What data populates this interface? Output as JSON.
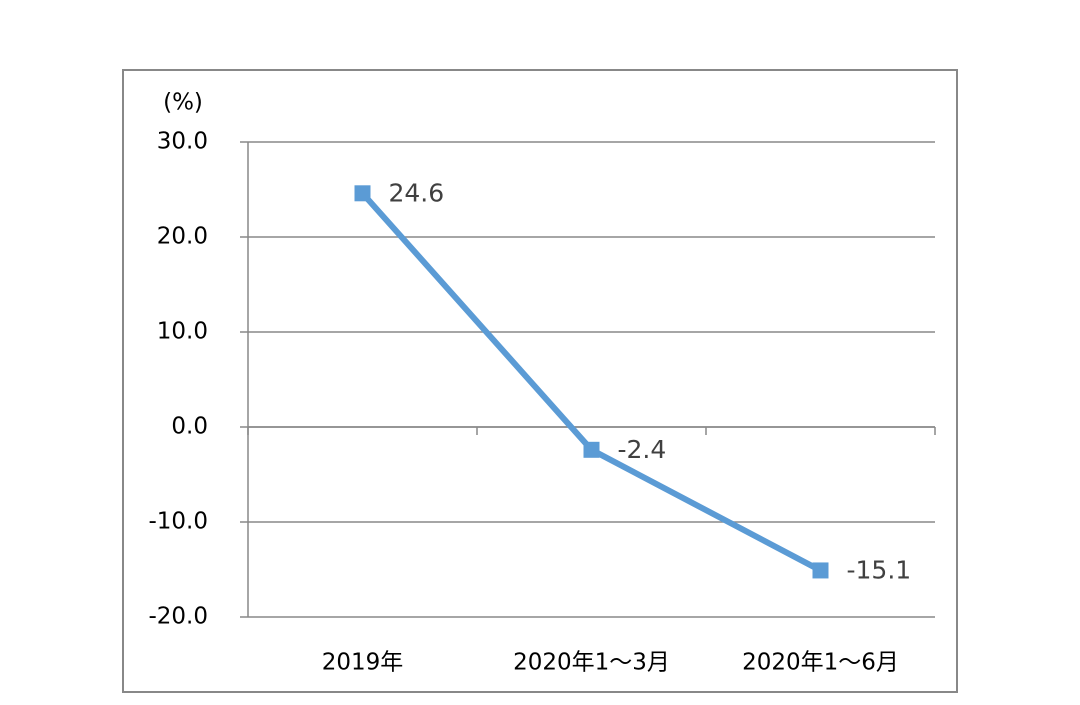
{
  "chart_data": {
    "type": "line",
    "ylabel": "(%)",
    "categories": [
      "2019年",
      "2020年1～3月",
      "2020年1～6月"
    ],
    "series": [
      {
        "color": "#5b9bd5",
        "values": [
          24.6,
          -2.4,
          -15.1
        ]
      }
    ],
    "ylim": [
      -20,
      30
    ],
    "yticks": [
      {
        "value": -20,
        "label": "-20.0"
      },
      {
        "value": -10,
        "label": "-10.0"
      },
      {
        "value": 0,
        "label": "0.0"
      },
      {
        "value": 10,
        "label": "10.0"
      },
      {
        "value": 20,
        "label": "20.0"
      },
      {
        "value": 30,
        "label": "30.0"
      }
    ],
    "grid": true
  }
}
